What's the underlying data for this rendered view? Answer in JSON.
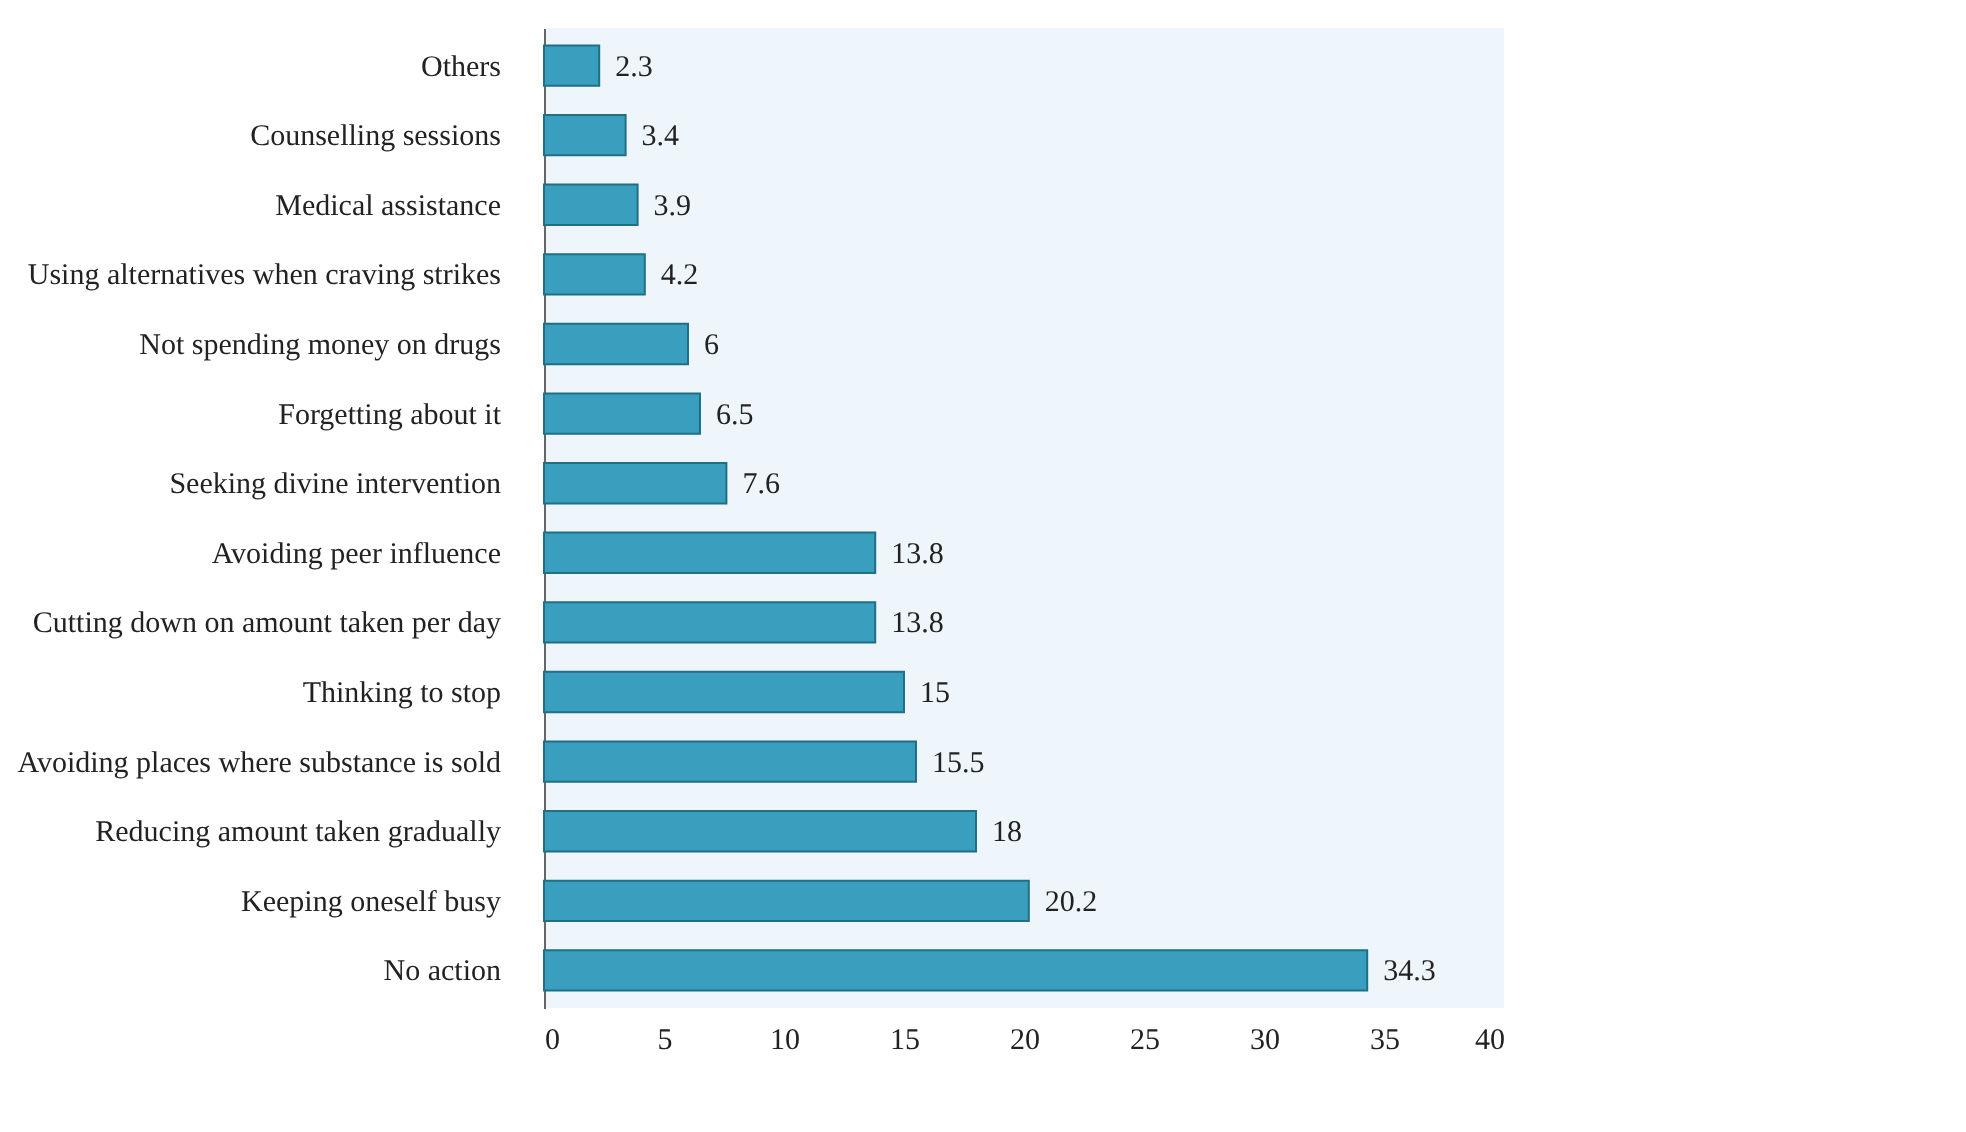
{
  "chart_data": {
    "type": "bar",
    "orientation": "horizontal",
    "categories": [
      "Others",
      "Counselling sessions",
      "Medical assistance",
      "Using alternatives when craving strikes",
      "Not spending money on drugs",
      "Forgetting about it",
      "Seeking divine intervention",
      "Avoiding peer influence",
      "Cutting down on amount taken per day",
      "Thinking to stop",
      "Avoiding places where substance is sold",
      "Reducing amount taken gradually",
      "Keeping oneself busy",
      "No action"
    ],
    "values": [
      2.3,
      3.4,
      3.9,
      4.2,
      6,
      6.5,
      7.6,
      13.8,
      13.8,
      15,
      15.5,
      18,
      20.2,
      34.3
    ],
    "color": "#3a9fbf",
    "xlim": [
      0,
      40
    ],
    "xticks": [
      0,
      5,
      10,
      15,
      20,
      25,
      30,
      35,
      40
    ],
    "data_labels": true,
    "grid": false
  }
}
